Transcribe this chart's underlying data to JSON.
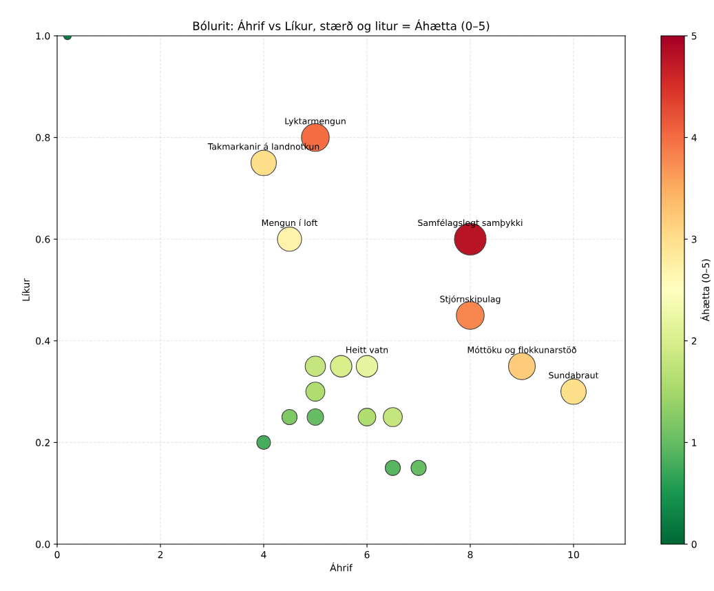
{
  "chart_data": {
    "type": "bubble",
    "title": "Bólurit: Áhrif vs Líkur, stærð og litur = Áhætta (0–5)",
    "xlabel": "Áhrif",
    "ylabel": "Líkur",
    "clabel": "Áhætta (0–5)",
    "x": [
      0.2,
      5,
      4,
      4.5,
      8,
      8,
      9,
      10,
      6,
      5.5,
      5,
      5,
      4.5,
      5,
      6,
      6.5,
      4,
      6.5,
      7
    ],
    "values": [
      1.0,
      0.8,
      0.75,
      0.6,
      0.6,
      0.45,
      0.35,
      0.3,
      0.35,
      0.35,
      0.35,
      0.3,
      0.25,
      0.25,
      0.25,
      0.25,
      0.2,
      0.15,
      0.15
    ],
    "sizes": [
      0.06,
      0.77,
      0.64,
      0.58,
      1,
      0.77,
      0.71,
      0.64,
      0.46,
      0.46,
      0.41,
      0.36,
      0.23,
      0.27,
      0.31,
      0.36,
      0.19,
      0.23,
      0.23
    ],
    "cvalues": [
      0.2,
      4.0,
      3.0,
      2.7,
      4.8,
      3.8,
      3.2,
      3.0,
      2.2,
      2.0,
      1.8,
      1.6,
      1.2,
      1.0,
      1.6,
      1.8,
      0.8,
      0.9,
      1.0
    ],
    "annotations": [
      {
        "text": "Lyktarmengun",
        "x": 5,
        "y": 0.8
      },
      {
        "text": "Takmarkanir á landnotkun",
        "x": 4,
        "y": 0.75
      },
      {
        "text": "Mengun í loft",
        "x": 4.5,
        "y": 0.6
      },
      {
        "text": "Samfélagslegt samþykki",
        "x": 8,
        "y": 0.6
      },
      {
        "text": "Stjórnskipulag",
        "x": 8,
        "y": 0.45
      },
      {
        "text": "Móttöku og flokkunarstöð",
        "x": 9,
        "y": 0.35
      },
      {
        "text": "Sundabraut",
        "x": 10,
        "y": 0.3
      },
      {
        "text": "Heitt vatn",
        "x": 6,
        "y": 0.35
      }
    ],
    "xlim": [
      0,
      11
    ],
    "xticks": [
      0,
      2,
      4,
      6,
      8,
      10
    ],
    "ylim": [
      0,
      1.0
    ],
    "yticks": [
      {
        "value": 0,
        "label": "0.0"
      },
      0.2,
      0.4,
      0.6,
      0.8,
      {
        "value": 1,
        "label": "1.0"
      }
    ],
    "clim": [
      0,
      5
    ],
    "cticks": [
      0,
      1,
      2,
      3,
      4,
      5
    ],
    "grid": true
  }
}
